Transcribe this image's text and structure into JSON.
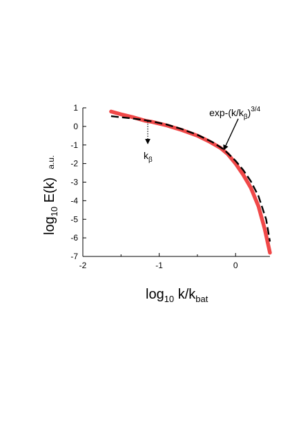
{
  "chart_data": {
    "type": "line",
    "xlabel": {
      "main": "log",
      "sub1": "10",
      "mid": " k/k",
      "sub2": "bat"
    },
    "ylabel": {
      "main": "log",
      "sub1": "10",
      "mid": " E(k)",
      "unit": "a.u."
    },
    "xlim": [
      -2,
      0.45
    ],
    "ylim": [
      -7,
      1
    ],
    "x_ticks": [
      -2,
      -1,
      0
    ],
    "y_ticks": [
      1,
      0,
      -1,
      -2,
      -3,
      -4,
      -5,
      -6,
      -7
    ],
    "x_tick_labels": [
      "-2",
      "-1",
      "0"
    ],
    "y_tick_labels": [
      "1",
      "0",
      "-1",
      "-2",
      "-3",
      "-4",
      "-5",
      "-6",
      "-7"
    ],
    "grid": false,
    "series": [
      {
        "style": "solid",
        "color": "#f04848",
        "x": [
          -1.63,
          -1.5,
          -1.35,
          -1.18,
          -1.1,
          -0.9,
          -0.7,
          -0.5,
          -0.35,
          -0.2,
          -0.1,
          0.0,
          0.1,
          0.2,
          0.3,
          0.38,
          0.45
        ],
        "y": [
          0.8,
          0.65,
          0.5,
          0.3,
          0.25,
          0.05,
          -0.2,
          -0.5,
          -0.8,
          -1.15,
          -1.5,
          -2.0,
          -2.6,
          -3.3,
          -4.3,
          -5.5,
          -6.8
        ]
      },
      {
        "style": "dashed",
        "color": "#000000",
        "x": [
          -1.63,
          -1.4,
          -1.2,
          -1.05,
          -0.9,
          -0.7,
          -0.5,
          -0.3,
          -0.15,
          0.0,
          0.1,
          0.2,
          0.3,
          0.4,
          0.45
        ],
        "y": [
          0.55,
          0.45,
          0.35,
          0.23,
          0.1,
          -0.15,
          -0.45,
          -0.85,
          -1.25,
          -1.85,
          -2.35,
          -2.95,
          -3.75,
          -5.0,
          -6.2
        ]
      }
    ],
    "annotations": [
      {
        "id": "kbeta",
        "text": "k",
        "sub": "β",
        "x": -1.15,
        "y_from": 0.28,
        "y_to": -1.0
      },
      {
        "id": "fit",
        "text": "exp-(k/k",
        "sub": "β",
        "tail": ")",
        "sup": "3/4",
        "x": -0.2,
        "y": -1.3
      }
    ]
  }
}
